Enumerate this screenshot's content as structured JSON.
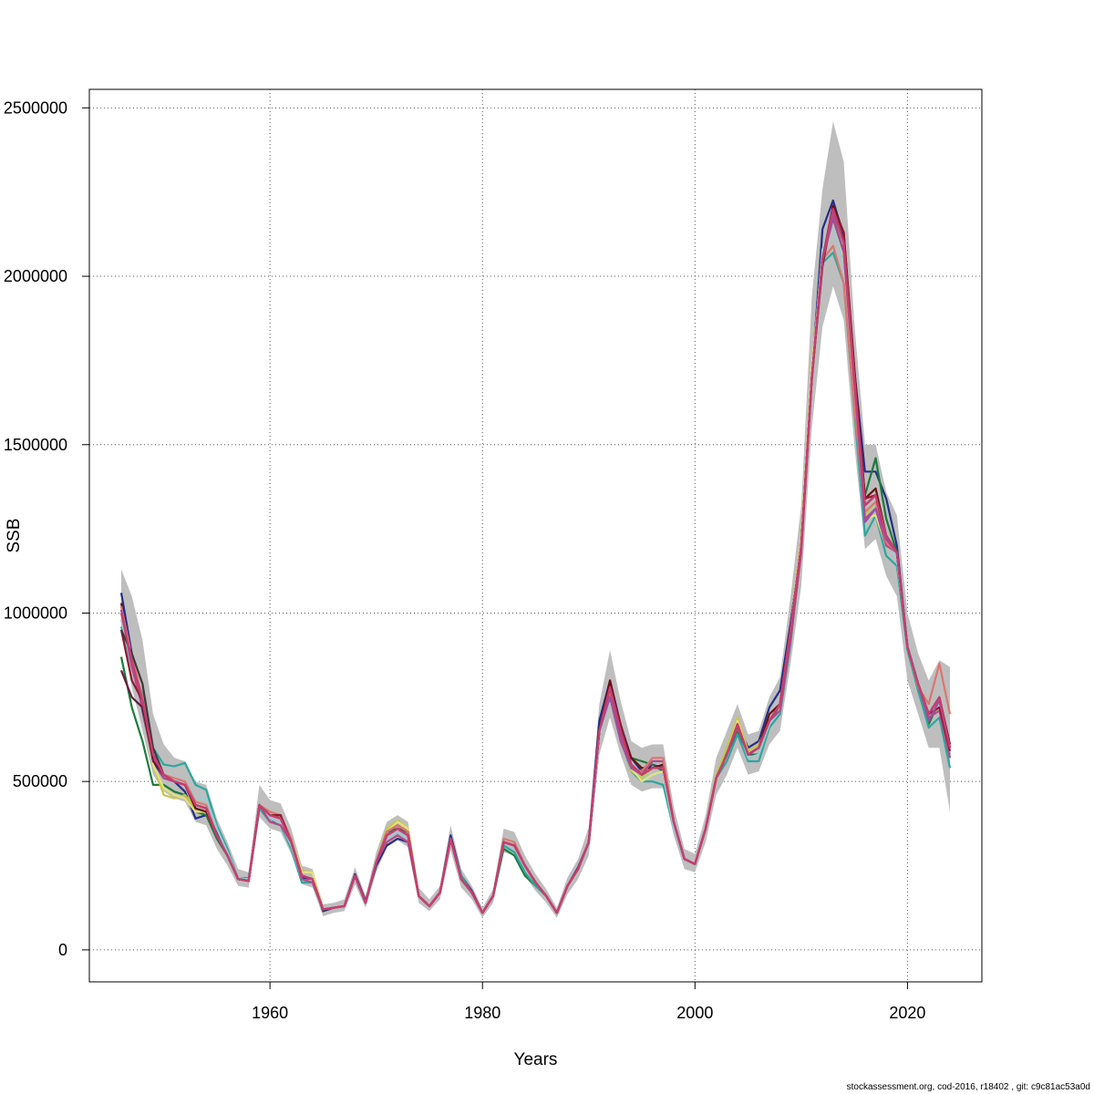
{
  "chart_data": {
    "type": "line",
    "title": "",
    "xlabel": "Years",
    "ylabel": "SSB",
    "xlim": [
      1943,
      2027
    ],
    "ylim": [
      -95000,
      2555000
    ],
    "x_ticks": [
      1960,
      1980,
      2000,
      2020
    ],
    "x_tick_labels": [
      "1960",
      "1980",
      "2000",
      "2020"
    ],
    "y_ticks": [
      0,
      500000,
      1000000,
      1500000,
      2000000,
      2500000
    ],
    "y_tick_labels": [
      "0",
      "500000",
      "1000000",
      "1500000",
      "2000000",
      "2500000"
    ],
    "grid": true,
    "band_color": "#bebebe",
    "x": [
      1946,
      1947,
      1948,
      1949,
      1950,
      1951,
      1952,
      1953,
      1954,
      1955,
      1956,
      1957,
      1958,
      1959,
      1960,
      1961,
      1962,
      1963,
      1964,
      1965,
      1966,
      1967,
      1968,
      1969,
      1970,
      1971,
      1972,
      1973,
      1974,
      1975,
      1976,
      1977,
      1978,
      1979,
      1980,
      1981,
      1982,
      1983,
      1984,
      1985,
      1986,
      1987,
      1988,
      1989,
      1990,
      1991,
      1992,
      1993,
      1994,
      1995,
      1996,
      1997,
      1998,
      1999,
      2000,
      2001,
      2002,
      2003,
      2004,
      2005,
      2006,
      2007,
      2008,
      2009,
      2010,
      2011,
      2012,
      2013,
      2014,
      2015,
      2016,
      2017,
      2018,
      2019,
      2020,
      2021,
      2022,
      2023,
      2024
    ],
    "ssb": [
      1000000,
      860000,
      740000,
      580000,
      520000,
      500000,
      490000,
      430000,
      420000,
      340000,
      280000,
      210000,
      205000,
      430000,
      400000,
      390000,
      320000,
      220000,
      210000,
      120000,
      125000,
      130000,
      220000,
      140000,
      260000,
      340000,
      360000,
      340000,
      160000,
      130000,
      170000,
      330000,
      210000,
      170000,
      110000,
      160000,
      320000,
      310000,
      250000,
      200000,
      160000,
      110000,
      190000,
      240000,
      320000,
      650000,
      780000,
      650000,
      550000,
      520000,
      540000,
      540000,
      380000,
      270000,
      255000,
      360000,
      510000,
      580000,
      670000,
      580000,
      600000,
      680000,
      730000,
      950000,
      1200000,
      1700000,
      2050000,
      2200000,
      2100000,
      1700000,
      1320000,
      1350000,
      1230000,
      1180000,
      900000,
      790000,
      700000,
      750000,
      600000
    ],
    "ssb_low": [
      950000,
      780000,
      650000,
      520000,
      470000,
      450000,
      440000,
      380000,
      370000,
      300000,
      250000,
      190000,
      185000,
      395000,
      360000,
      350000,
      285000,
      195000,
      185000,
      100000,
      110000,
      115000,
      195000,
      125000,
      230000,
      305000,
      325000,
      305000,
      140000,
      115000,
      150000,
      295000,
      185000,
      150000,
      95000,
      140000,
      290000,
      280000,
      220000,
      175000,
      140000,
      95000,
      165000,
      210000,
      280000,
      580000,
      690000,
      580000,
      490000,
      470000,
      480000,
      480000,
      340000,
      240000,
      230000,
      320000,
      460000,
      520000,
      600000,
      520000,
      530000,
      610000,
      650000,
      850000,
      1080000,
      1550000,
      1850000,
      1970000,
      1870000,
      1500000,
      1190000,
      1220000,
      1110000,
      1050000,
      800000,
      700000,
      600000,
      600000,
      410000
    ],
    "ssb_high": [
      1130000,
      1050000,
      920000,
      700000,
      610000,
      570000,
      560000,
      500000,
      490000,
      390000,
      320000,
      240000,
      230000,
      490000,
      445000,
      435000,
      360000,
      250000,
      240000,
      135000,
      140000,
      150000,
      245000,
      160000,
      290000,
      380000,
      400000,
      380000,
      185000,
      150000,
      190000,
      370000,
      240000,
      190000,
      125000,
      180000,
      360000,
      350000,
      280000,
      225000,
      180000,
      125000,
      215000,
      270000,
      365000,
      730000,
      890000,
      740000,
      620000,
      600000,
      610000,
      610000,
      425000,
      300000,
      285000,
      400000,
      570000,
      650000,
      730000,
      640000,
      650000,
      750000,
      810000,
      1050000,
      1320000,
      1940000,
      2260000,
      2460000,
      2340000,
      1860000,
      1500000,
      1500000,
      1360000,
      1290000,
      1000000,
      880000,
      800000,
      860000,
      840000
    ],
    "series_colors": [
      "#232f85",
      "#1b7b3c",
      "#2ba89e",
      "#9fc9d2",
      "#c5c84a",
      "#e8e07a",
      "#6b1212",
      "#b44a86",
      "#d9776f",
      "#6d1a3e",
      "#8f1b2f",
      "#3b3b3b",
      "#9c4fa0",
      "#cc3c6e"
    ],
    "series_offsets": [
      [
        60000,
        20000,
        -30000,
        -20000,
        -10000,
        0,
        -20000,
        -40000,
        -20000,
        10000,
        0,
        0,
        0,
        -5000,
        -10000,
        -20000,
        10000,
        -5000,
        0,
        -5000,
        0,
        0,
        5000,
        5000,
        -10000,
        -30000,
        -30000,
        -20000,
        0,
        0,
        0,
        10000,
        10000,
        5000,
        0,
        0,
        0,
        0,
        0,
        0,
        0,
        0,
        0,
        5000,
        0,
        30000,
        20000,
        20000,
        20000,
        10000,
        10000,
        0,
        0,
        0,
        0,
        0,
        0,
        20000,
        0,
        20000,
        20000,
        40000,
        40000,
        20000,
        0,
        0,
        90000,
        25000,
        20000,
        20000,
        100000,
        70000,
        110000,
        20000,
        0,
        0,
        0,
        0,
        -20000
      ],
      [
        -130000,
        -140000,
        -120000,
        -90000,
        -30000,
        -30000,
        -30000,
        -20000,
        -20000,
        -10000,
        0,
        0,
        0,
        -10000,
        0,
        10000,
        -10000,
        0,
        0,
        0,
        0,
        0,
        0,
        0,
        0,
        10000,
        0,
        10000,
        0,
        0,
        0,
        0,
        0,
        0,
        0,
        0,
        -20000,
        -30000,
        -30000,
        -10000,
        0,
        0,
        0,
        0,
        0,
        0,
        0,
        0,
        20000,
        40000,
        10000,
        -10000,
        0,
        0,
        0,
        0,
        0,
        0,
        -20000,
        0,
        -20000,
        -10000,
        0,
        0,
        0,
        0,
        0,
        0,
        0,
        0,
        30000,
        110000,
        50000,
        0,
        0,
        -20000,
        -30000,
        -10000,
        -30000
      ],
      [
        -40000,
        -20000,
        20000,
        20000,
        30000,
        45000,
        65000,
        60000,
        55000,
        30000,
        20000,
        0,
        10000,
        -10000,
        -20000,
        -20000,
        -20000,
        -20000,
        -10000,
        0,
        0,
        0,
        0,
        0,
        0,
        -10000,
        -10000,
        -10000,
        0,
        0,
        0,
        0,
        10000,
        0,
        0,
        0,
        -10000,
        -20000,
        -20000,
        -10000,
        0,
        0,
        0,
        0,
        0,
        0,
        -20000,
        -20000,
        -20000,
        -20000,
        -40000,
        -50000,
        -20000,
        0,
        0,
        0,
        0,
        -20000,
        -30000,
        -20000,
        -40000,
        -20000,
        -30000,
        -40000,
        0,
        0,
        -10000,
        -130000,
        -120000,
        -100000,
        -90000,
        -60000,
        -60000,
        -40000,
        -10000,
        -20000,
        -40000,
        -60000,
        -60000
      ],
      [
        -20000,
        -20000,
        0,
        0,
        0,
        0,
        10000,
        20000,
        30000,
        20000,
        10000,
        0,
        5000,
        0,
        -10000,
        -15000,
        -10000,
        -10000,
        -10000,
        0,
        0,
        0,
        0,
        0,
        0,
        -10000,
        -10000,
        -10000,
        0,
        0,
        0,
        0,
        0,
        0,
        0,
        0,
        0,
        0,
        0,
        0,
        0,
        0,
        0,
        0,
        -10000,
        -10000,
        -20000,
        -10000,
        -10000,
        -10000,
        -20000,
        -20000,
        -20000,
        0,
        0,
        0,
        0,
        0,
        0,
        -10000,
        -20000,
        -10000,
        -20000,
        -20000,
        -10000,
        10000,
        30000,
        -50000,
        -60000,
        -40000,
        -50000,
        -20000,
        -20000,
        -20000,
        10000,
        10000,
        -10000,
        -20000,
        -20000
      ],
      [
        20000,
        0,
        0,
        -30000,
        -60000,
        -50000,
        -30000,
        -10000,
        -10000,
        0,
        0,
        0,
        0,
        0,
        10000,
        0,
        10000,
        15000,
        20000,
        0,
        0,
        0,
        0,
        0,
        0,
        20000,
        25000,
        20000,
        0,
        0,
        0,
        0,
        0,
        0,
        0,
        0,
        0,
        0,
        0,
        0,
        0,
        0,
        0,
        0,
        0,
        0,
        0,
        0,
        -20000,
        -10000,
        0,
        0,
        0,
        0,
        0,
        0,
        10000,
        20000,
        20000,
        10000,
        10000,
        0,
        0,
        0,
        30000,
        20000,
        0,
        -20000,
        0,
        0,
        -30000,
        -20000,
        0,
        0,
        0,
        0,
        0,
        0,
        0
      ],
      [
        0,
        0,
        -20000,
        -30000,
        -40000,
        -40000,
        -40000,
        -20000,
        -10000,
        0,
        0,
        0,
        0,
        0,
        0,
        0,
        10000,
        10000,
        20000,
        0,
        0,
        0,
        0,
        0,
        0,
        10000,
        20000,
        20000,
        0,
        0,
        0,
        0,
        0,
        0,
        0,
        0,
        0,
        0,
        0,
        0,
        0,
        0,
        0,
        0,
        0,
        0,
        0,
        0,
        -10000,
        -20000,
        -20000,
        -10000,
        0,
        0,
        0,
        0,
        0,
        0,
        10000,
        0,
        0,
        0,
        0,
        0,
        20000,
        30000,
        0,
        -30000,
        -40000,
        -20000,
        -40000,
        -60000,
        -30000,
        0,
        0,
        0,
        0,
        0,
        0
      ],
      [
        30000,
        0,
        -10000,
        -10000,
        0,
        0,
        0,
        -10000,
        -10000,
        0,
        0,
        0,
        0,
        0,
        0,
        10000,
        0,
        0,
        0,
        0,
        0,
        0,
        0,
        0,
        0,
        10000,
        10000,
        10000,
        0,
        0,
        0,
        0,
        0,
        0,
        0,
        0,
        0,
        0,
        0,
        0,
        0,
        0,
        0,
        0,
        0,
        0,
        20000,
        10000,
        20000,
        20000,
        0,
        10000,
        0,
        0,
        0,
        0,
        0,
        0,
        0,
        0,
        0,
        20000,
        0,
        0,
        0,
        0,
        0,
        10000,
        30000,
        30000,
        20000,
        20000,
        0,
        0,
        0,
        0,
        0,
        0,
        10000
      ],
      [
        10000,
        -20000,
        -20000,
        -10000,
        -10000,
        0,
        0,
        0,
        0,
        0,
        0,
        0,
        0,
        0,
        -20000,
        -20000,
        0,
        -10000,
        -10000,
        0,
        0,
        0,
        0,
        0,
        0,
        -20000,
        -20000,
        -20000,
        0,
        0,
        0,
        0,
        0,
        0,
        0,
        0,
        0,
        0,
        0,
        0,
        0,
        0,
        0,
        0,
        0,
        0,
        -20000,
        -20000,
        -10000,
        0,
        20000,
        20000,
        0,
        0,
        0,
        0,
        0,
        0,
        -10000,
        0,
        0,
        0,
        -20000,
        -30000,
        -20000,
        -10000,
        0,
        -30000,
        -30000,
        -20000,
        -40000,
        -40000,
        -30000,
        0,
        0,
        0,
        -10000,
        -40000,
        -30000
      ],
      [
        20000,
        10000,
        10000,
        0,
        0,
        10000,
        10000,
        10000,
        10000,
        0,
        0,
        0,
        0,
        0,
        10000,
        10000,
        10000,
        0,
        0,
        0,
        0,
        0,
        0,
        0,
        0,
        10000,
        10000,
        10000,
        0,
        0,
        0,
        0,
        0,
        0,
        0,
        0,
        10000,
        10000,
        0,
        0,
        0,
        0,
        0,
        0,
        0,
        0,
        -10000,
        0,
        -10000,
        10000,
        30000,
        30000,
        0,
        0,
        0,
        0,
        0,
        0,
        0,
        0,
        0,
        0,
        0,
        0,
        0,
        0,
        0,
        -110000,
        -120000,
        -90000,
        -20000,
        -20000,
        -20000,
        0,
        0,
        -10000,
        30000,
        100000,
        100000
      ],
      [
        -170000,
        -110000,
        -20000,
        -20000,
        0,
        0,
        0,
        0,
        0,
        0,
        0,
        0,
        0,
        0,
        0,
        0,
        0,
        0,
        0,
        0,
        0,
        0,
        0,
        0,
        0,
        0,
        0,
        0,
        0,
        0,
        0,
        0,
        0,
        0,
        0,
        0,
        0,
        0,
        0,
        0,
        0,
        0,
        0,
        0,
        0,
        0,
        0,
        0,
        0,
        0,
        0,
        0,
        0,
        0,
        0,
        0,
        0,
        0,
        0,
        0,
        0,
        0,
        0,
        0,
        0,
        0,
        0,
        0,
        0,
        0,
        0,
        0,
        0,
        0,
        0,
        0,
        0,
        0,
        0
      ],
      [
        -50000,
        -60000,
        0,
        0,
        0,
        0,
        0,
        0,
        0,
        0,
        0,
        0,
        0,
        0,
        0,
        10000,
        0,
        0,
        0,
        0,
        0,
        0,
        0,
        0,
        0,
        0,
        0,
        0,
        0,
        0,
        0,
        0,
        0,
        0,
        0,
        0,
        0,
        0,
        0,
        0,
        0,
        0,
        0,
        0,
        0,
        0,
        0,
        20000,
        0,
        0,
        0,
        0,
        0,
        0,
        0,
        0,
        0,
        0,
        0,
        0,
        0,
        0,
        0,
        0,
        0,
        0,
        -20000,
        0,
        30000,
        10000,
        20000,
        0,
        -10000,
        0,
        0,
        0,
        0,
        -30000,
        -10000
      ],
      [
        -50000,
        20000,
        50000,
        20000,
        0,
        0,
        0,
        0,
        0,
        0,
        0,
        0,
        0,
        0,
        0,
        0,
        0,
        0,
        0,
        0,
        0,
        0,
        0,
        0,
        0,
        0,
        0,
        0,
        0,
        0,
        0,
        0,
        0,
        0,
        0,
        0,
        0,
        0,
        0,
        0,
        0,
        0,
        0,
        0,
        0,
        0,
        0,
        0,
        0,
        0,
        0,
        0,
        0,
        0,
        0,
        0,
        0,
        0,
        0,
        0,
        0,
        0,
        0,
        0,
        0,
        0,
        0,
        0,
        0,
        0,
        0,
        0,
        0,
        0,
        0,
        0,
        0,
        0,
        0
      ],
      [
        10000,
        -10000,
        0,
        0,
        0,
        0,
        0,
        0,
        0,
        0,
        0,
        0,
        0,
        0,
        0,
        0,
        0,
        0,
        0,
        0,
        0,
        0,
        0,
        0,
        0,
        0,
        0,
        0,
        0,
        0,
        0,
        0,
        0,
        0,
        0,
        0,
        0,
        0,
        0,
        0,
        0,
        0,
        0,
        0,
        0,
        0,
        -30000,
        -30000,
        -10000,
        0,
        0,
        0,
        0,
        0,
        0,
        0,
        0,
        0,
        0,
        0,
        0,
        0,
        0,
        0,
        0,
        0,
        0,
        -20000,
        -30000,
        0,
        -50000,
        -40000,
        -10000,
        0,
        0,
        0,
        -20000,
        -10000,
        0
      ],
      [
        0,
        0,
        0,
        0,
        0,
        0,
        0,
        0,
        0,
        0,
        0,
        0,
        0,
        0,
        0,
        0,
        0,
        0,
        0,
        0,
        0,
        0,
        0,
        0,
        0,
        0,
        0,
        0,
        0,
        0,
        0,
        0,
        0,
        0,
        0,
        0,
        0,
        0,
        0,
        0,
        0,
        0,
        0,
        0,
        0,
        0,
        0,
        0,
        0,
        0,
        0,
        0,
        0,
        0,
        0,
        0,
        0,
        0,
        0,
        0,
        0,
        0,
        0,
        0,
        0,
        0,
        0,
        0,
        0,
        0,
        0,
        0,
        0,
        0,
        0,
        0,
        0,
        0,
        0
      ]
    ]
  },
  "footer": "stockassessment.org, cod-2016, r18402 , git: c9c81ac53a0d"
}
